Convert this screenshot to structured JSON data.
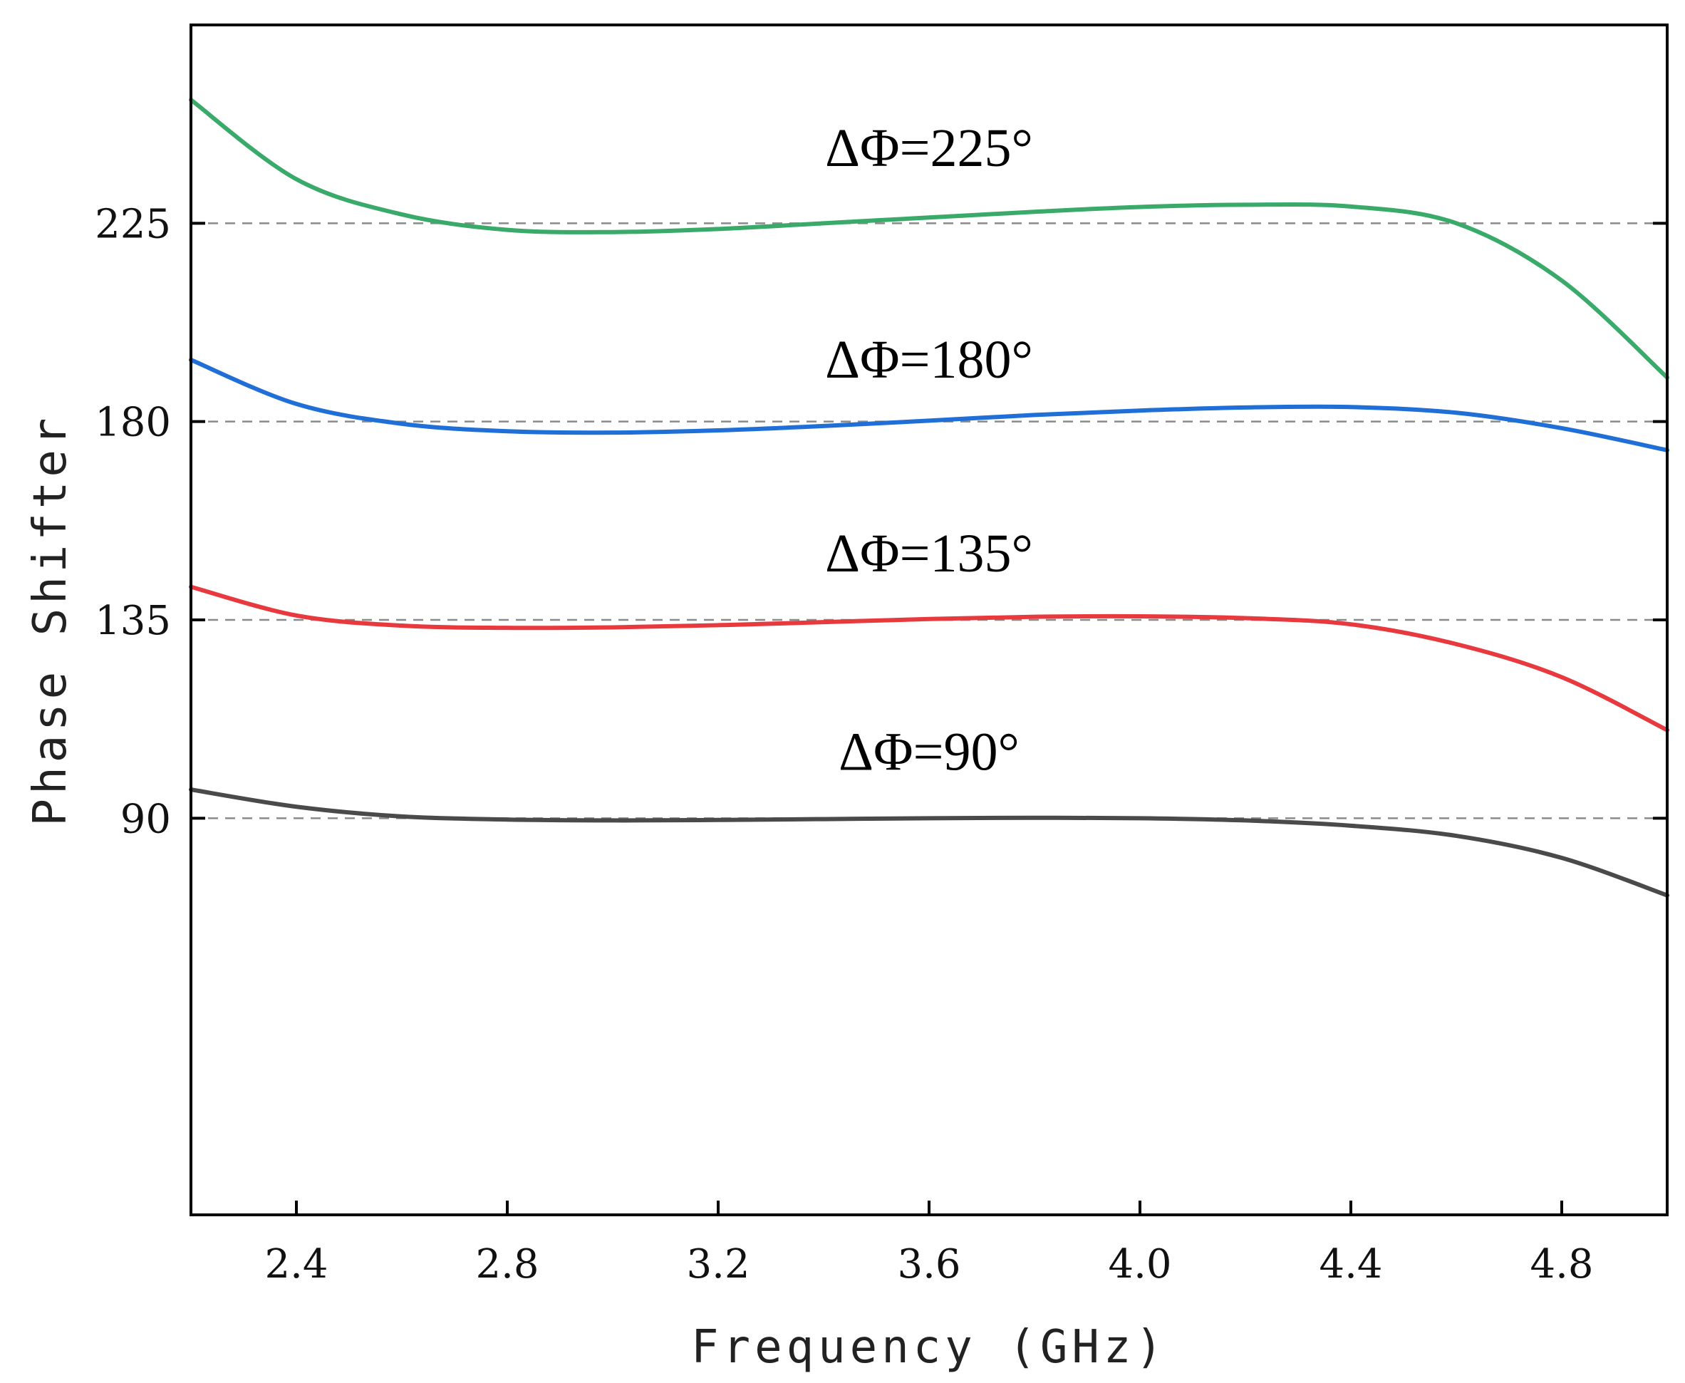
{
  "chart_data": {
    "type": "line",
    "title": "",
    "xlabel": "Frequency (GHz)",
    "ylabel": "Phase Shifter",
    "xlim": [
      2.2,
      5.0
    ],
    "ylim": [
      0,
      270
    ],
    "xticks": [
      2.4,
      2.8,
      3.2,
      3.6,
      4.0,
      4.4,
      4.8
    ],
    "xtick_labels": [
      "2.4",
      "2.8",
      "3.2",
      "3.6",
      "4.0",
      "4.4",
      "4.8"
    ],
    "yticks": [
      90,
      135,
      180,
      225
    ],
    "ytick_labels": [
      "90",
      "135",
      "180",
      "225"
    ],
    "reference_lines": [
      90,
      135,
      180,
      225
    ],
    "grid": false,
    "series": [
      {
        "name": "ΔΦ=225°",
        "label": "ΔΦ=225°",
        "color": "#3aaa6a",
        "label_at": [
          3.6,
          238
        ],
        "x": [
          2.2,
          2.4,
          2.6,
          2.8,
          3.0,
          3.2,
          3.4,
          3.6,
          3.8,
          4.0,
          4.2,
          4.4,
          4.6,
          4.8,
          5.0
        ],
        "y": [
          253,
          235,
          227,
          223.5,
          223,
          223.7,
          225,
          226.3,
          227.6,
          228.7,
          229.2,
          228.8,
          225,
          212,
          190
        ]
      },
      {
        "name": "ΔΦ=180°",
        "label": "ΔΦ=180°",
        "color": "#1f6fd6",
        "label_at": [
          3.6,
          190
        ],
        "x": [
          2.2,
          2.4,
          2.6,
          2.8,
          3.0,
          3.2,
          3.4,
          3.6,
          3.8,
          4.0,
          4.2,
          4.4,
          4.6,
          4.8,
          5.0
        ],
        "y": [
          194,
          184,
          179.5,
          177.8,
          177.5,
          178,
          179,
          180.2,
          181.5,
          182.5,
          183.2,
          183.3,
          182,
          178.5,
          173.5
        ]
      },
      {
        "name": "ΔΦ=135°",
        "label": "ΔΦ=135°",
        "color": "#e8393f",
        "label_at": [
          3.6,
          146
        ],
        "x": [
          2.2,
          2.4,
          2.6,
          2.8,
          3.0,
          3.2,
          3.4,
          3.6,
          3.8,
          4.0,
          4.2,
          4.4,
          4.6,
          4.8,
          5.0
        ],
        "y": [
          142.5,
          136,
          133.7,
          133.2,
          133.3,
          133.8,
          134.5,
          135.2,
          135.7,
          135.8,
          135.4,
          134,
          129.5,
          122,
          110
        ]
      },
      {
        "name": "ΔΦ=90°",
        "label": "ΔΦ=90°",
        "color": "#4a4a4a",
        "label_at": [
          3.6,
          101
        ],
        "x": [
          2.2,
          2.4,
          2.6,
          2.8,
          3.0,
          3.2,
          3.4,
          3.6,
          3.8,
          4.0,
          4.2,
          4.4,
          4.6,
          4.8,
          5.0
        ],
        "y": [
          96.5,
          92.6,
          90.4,
          89.7,
          89.5,
          89.6,
          89.8,
          90,
          90.1,
          90,
          89.5,
          88.3,
          86,
          81,
          72.5
        ]
      }
    ]
  }
}
